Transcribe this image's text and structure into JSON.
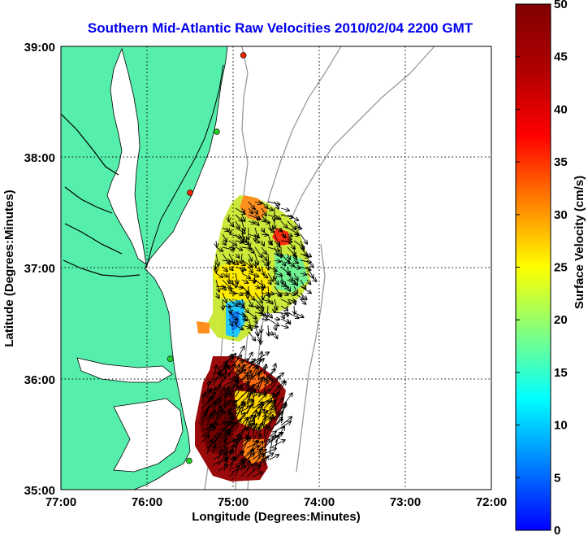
{
  "title": "Southern Mid-Atlantic Raw Velocities 2010/02/04 2200 GMT",
  "xlabel": "Longitude (Degrees:Minutes)",
  "ylabel": "Latitude (Degrees:Minutes)",
  "colorbar_label": "Surface Velocity (cm/s)",
  "x_ticks": [
    "77:00",
    "76:00",
    "75:00",
    "74:00",
    "73:00",
    "72:00"
  ],
  "y_ticks": [
    "39:00",
    "38:00",
    "37:00",
    "36:00",
    "35:00"
  ],
  "colorbar_ticks": [
    "50",
    "45",
    "40",
    "35",
    "30",
    "25",
    "20",
    "15",
    "10",
    "5",
    "0"
  ],
  "colors": {
    "land": "#55eeaa",
    "ocean": "#ffffff",
    "title": "#0000ee",
    "station_green": "#22cc22",
    "station_red": "#ee2200",
    "bathymetry": "#999999"
  },
  "chart_data": {
    "type": "heatmap",
    "xlim": [
      -77,
      -72
    ],
    "ylim": [
      35,
      39
    ],
    "clim": [
      0,
      50
    ],
    "grid": true,
    "colorbar": "right",
    "stations": [
      {
        "lon": -74.88,
        "lat": 38.92,
        "color": "red"
      },
      {
        "lon": -75.19,
        "lat": 38.23,
        "color": "green"
      },
      {
        "lon": -75.5,
        "lat": 37.68,
        "color": "red"
      },
      {
        "lon": -75.73,
        "lat": 36.18,
        "color": "green"
      },
      {
        "lon": -75.51,
        "lat": 35.26,
        "color": "green"
      }
    ]
  }
}
